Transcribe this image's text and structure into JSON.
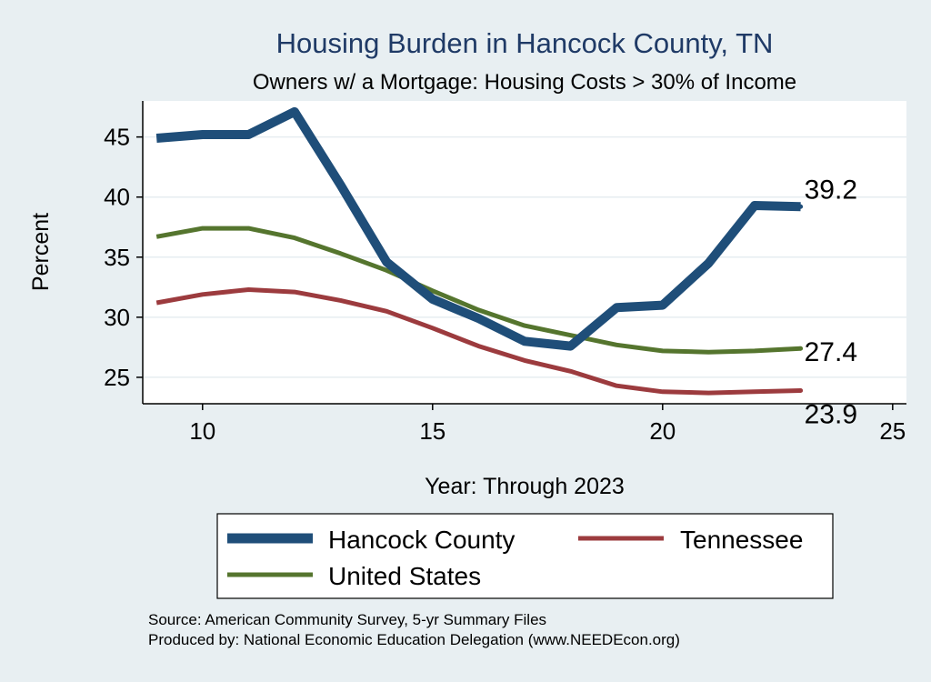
{
  "chart_data": {
    "type": "line",
    "title": "Housing Burden in Hancock County, TN",
    "subtitle": "Owners w/ a Mortgage: Housing Costs > 30% of Income",
    "xlabel": "Year: Through 2023",
    "ylabel": "Percent",
    "xlim": [
      8.7,
      25.3
    ],
    "ylim": [
      22.8,
      48.0
    ],
    "xticks": [
      10,
      15,
      20,
      25
    ],
    "yticks": [
      25,
      30,
      35,
      40,
      45
    ],
    "grid": true,
    "legend_position": "bottom",
    "series": [
      {
        "name": "Hancock County",
        "color": "#1f4e79",
        "x": [
          9,
          10,
          11,
          12,
          13,
          14,
          15,
          16,
          17,
          18,
          19,
          20,
          21,
          22,
          23
        ],
        "values": [
          44.9,
          45.2,
          45.2,
          47.1,
          41.0,
          34.6,
          31.5,
          29.9,
          28.0,
          27.6,
          30.8,
          31.0,
          34.5,
          39.3,
          39.2
        ],
        "end_label": "39.2"
      },
      {
        "name": "Tennessee",
        "color": "#9c3b3e",
        "x": [
          9,
          10,
          11,
          12,
          13,
          14,
          15,
          16,
          17,
          18,
          19,
          20,
          21,
          22,
          23
        ],
        "values": [
          31.2,
          31.9,
          32.3,
          32.1,
          31.4,
          30.5,
          29.1,
          27.6,
          26.4,
          25.5,
          24.3,
          23.8,
          23.7,
          23.8,
          23.9
        ],
        "end_label": "23.9"
      },
      {
        "name": "United States",
        "color": "#55752e",
        "x": [
          9,
          10,
          11,
          12,
          13,
          14,
          15,
          16,
          17,
          18,
          19,
          20,
          21,
          22,
          23
        ],
        "values": [
          36.7,
          37.4,
          37.4,
          36.6,
          35.3,
          33.9,
          32.2,
          30.6,
          29.3,
          28.5,
          27.7,
          27.2,
          27.1,
          27.2,
          27.4
        ],
        "end_label": "27.4"
      }
    ],
    "legend": [
      "Hancock County",
      "Tennessee",
      "United States"
    ],
    "notes": [
      "Source: American Community Survey, 5-yr Summary Files",
      "Produced by: National Economic Education Delegation (www.NEEDEcon.org)"
    ]
  }
}
